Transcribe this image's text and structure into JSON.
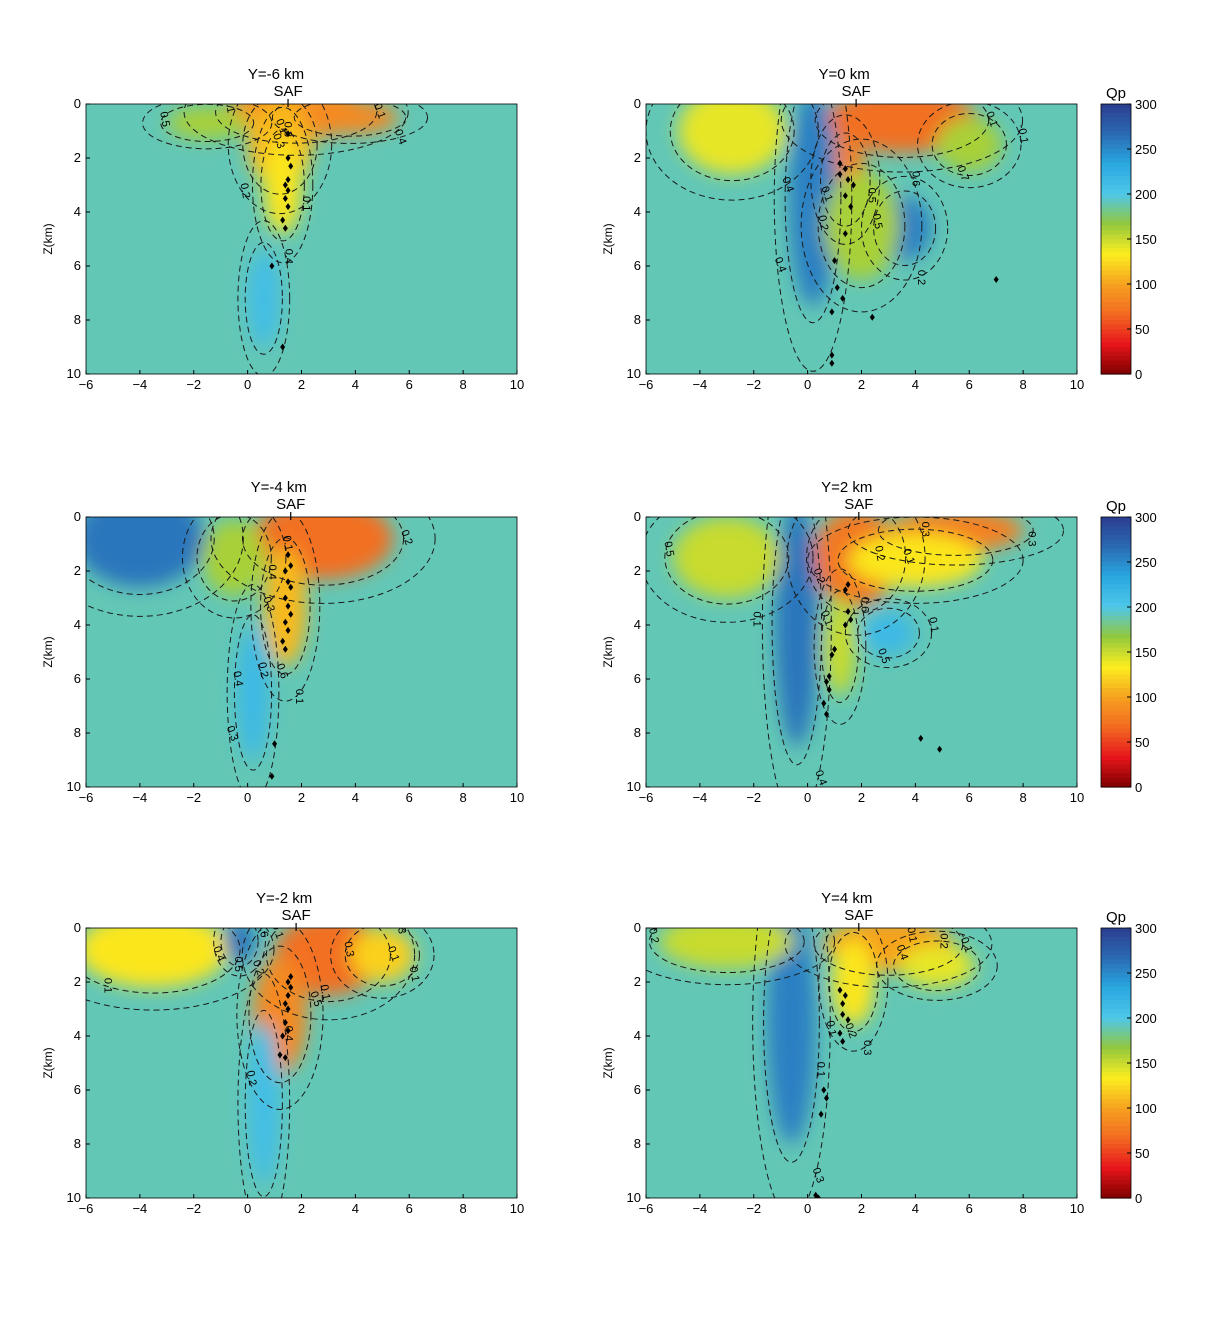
{
  "figure": {
    "colorbar_label": "Qp",
    "colorbar_ticks": [
      0,
      50,
      100,
      150,
      200,
      250,
      300
    ],
    "colorscale": [
      "#7f0000",
      "#e8161c",
      "#f26a21",
      "#f6a21f",
      "#fcee1f",
      "#93c83e",
      "#4ec7e9",
      "#29a8e0",
      "#2a6ab3",
      "#2c3d8f"
    ]
  },
  "chart_data": [
    {
      "type": "heatmap",
      "title": "Y=-6 km",
      "subtitle": "SAF",
      "ylabel": "Z(km)",
      "xlabel": "",
      "xlim": [
        -6,
        10
      ],
      "ylim": [
        0,
        10
      ],
      "xticks": [
        -6,
        -4,
        -2,
        0,
        2,
        4,
        6,
        8,
        10
      ],
      "yticks": [
        0,
        2,
        4,
        6,
        8,
        10
      ],
      "background_qp": 190,
      "saf_x": 1.5,
      "anomalies": [
        {
          "x": 1.8,
          "z": 0.3,
          "rx": 2.6,
          "rz": 1.0,
          "qp": 90
        },
        {
          "x": 1.2,
          "z": 1.5,
          "rx": 1.2,
          "rz": 1.6,
          "qp": 110
        },
        {
          "x": 1.3,
          "z": 3.0,
          "rx": 0.7,
          "rz": 1.8,
          "qp": 130
        },
        {
          "x": 3.8,
          "z": 0.5,
          "rx": 1.8,
          "rz": 0.6,
          "qp": 85
        },
        {
          "x": -1.5,
          "z": 0.7,
          "rx": 1.5,
          "rz": 0.6,
          "qp": 160
        },
        {
          "x": 0.6,
          "z": 7.2,
          "rx": 0.6,
          "rz": 1.8,
          "qp": 210
        }
      ],
      "contour_labels": [
        "0.1",
        "0.2",
        "0.3",
        "0.4",
        "0.5",
        "0.4",
        "0.3",
        "0.2",
        "0.1",
        "0.1",
        "0.1"
      ],
      "events": [
        [
          1.5,
          1.1
        ],
        [
          1.5,
          2.0
        ],
        [
          1.6,
          2.3
        ],
        [
          1.5,
          2.8
        ],
        [
          1.4,
          3.0
        ],
        [
          1.5,
          3.2
        ],
        [
          1.4,
          3.5
        ],
        [
          1.5,
          3.8
        ],
        [
          1.3,
          4.3
        ],
        [
          1.4,
          4.6
        ],
        [
          0.9,
          6.0
        ],
        [
          1.3,
          9.0
        ]
      ]
    },
    {
      "type": "heatmap",
      "title": "Y=0 km",
      "subtitle": "SAF",
      "ylabel": "Z(km)",
      "xlabel": "",
      "xlim": [
        -6,
        10
      ],
      "ylim": [
        0,
        10
      ],
      "xticks": [
        -6,
        -4,
        -2,
        0,
        2,
        4,
        6,
        8,
        10
      ],
      "yticks": [
        0,
        2,
        4,
        6,
        8,
        10
      ],
      "background_qp": 190,
      "saf_x": 1.8,
      "anomalies": [
        {
          "x": 3.5,
          "z": 0.6,
          "rx": 2.8,
          "rz": 1.2,
          "qp": 70
        },
        {
          "x": 1.4,
          "z": 2.8,
          "rx": 0.8,
          "rz": 1.5,
          "qp": 80
        },
        {
          "x": 0.2,
          "z": 3.5,
          "rx": 0.9,
          "rz": 4.0,
          "qp": 255
        },
        {
          "x": -2.8,
          "z": 1.0,
          "rx": 2.0,
          "rz": 1.6,
          "qp": 140
        },
        {
          "x": 3.6,
          "z": 4.6,
          "rx": 1.0,
          "rz": 1.2,
          "qp": 255
        },
        {
          "x": 2.0,
          "z": 4.5,
          "rx": 1.4,
          "rz": 2.0,
          "qp": 160
        },
        {
          "x": 6.0,
          "z": 1.5,
          "rx": 1.2,
          "rz": 1.0,
          "qp": 160
        }
      ],
      "contour_labels": [
        "0.1",
        "0.2",
        "0.3",
        "0.4",
        "0.5",
        "0.6",
        "0.7",
        "0.6",
        "0.5",
        "0.4",
        "0.3",
        "0.2",
        "0.1",
        "-0.1"
      ],
      "events": [
        [
          1.2,
          2.2
        ],
        [
          1.4,
          2.4
        ],
        [
          1.2,
          2.6
        ],
        [
          1.5,
          2.8
        ],
        [
          1.7,
          3.0
        ],
        [
          1.4,
          3.4
        ],
        [
          1.6,
          3.8
        ],
        [
          1.4,
          4.8
        ],
        [
          1.0,
          5.8
        ],
        [
          1.1,
          6.8
        ],
        [
          1.3,
          7.2
        ],
        [
          0.9,
          7.7
        ],
        [
          2.4,
          7.9
        ],
        [
          0.9,
          9.3
        ],
        [
          0.9,
          9.6
        ],
        [
          7.0,
          6.5
        ]
      ]
    },
    {
      "type": "heatmap",
      "title": "Y=-4 km",
      "subtitle": "SAF",
      "ylabel": "Z(km)",
      "xlabel": "",
      "xlim": [
        -6,
        10
      ],
      "ylim": [
        0,
        10
      ],
      "xticks": [
        -6,
        -4,
        -2,
        0,
        2,
        4,
        6,
        8,
        10
      ],
      "yticks": [
        0,
        2,
        4,
        6,
        8,
        10
      ],
      "background_qp": 190,
      "saf_x": 1.6,
      "anomalies": [
        {
          "x": 2.8,
          "z": 0.8,
          "rx": 2.6,
          "rz": 1.5,
          "qp": 70
        },
        {
          "x": 1.4,
          "z": 3.3,
          "rx": 0.8,
          "rz": 2.2,
          "qp": 110
        },
        {
          "x": -4.0,
          "z": 0.8,
          "rx": 2.4,
          "rz": 1.8,
          "qp": 260
        },
        {
          "x": -0.5,
          "z": 1.5,
          "rx": 1.2,
          "rz": 1.4,
          "qp": 160
        },
        {
          "x": 0.2,
          "z": 6.5,
          "rx": 0.6,
          "rz": 2.5,
          "qp": 215
        }
      ],
      "contour_labels": [
        "0.2",
        "0.2",
        "0.1",
        "0.3",
        "0.4",
        "0.5",
        "0.6",
        "0.5",
        "0.4",
        "0.3",
        "0.2",
        "0.1",
        "0.1",
        "0.1"
      ],
      "events": [
        [
          1.5,
          1.4
        ],
        [
          1.6,
          1.8
        ],
        [
          1.4,
          2.0
        ],
        [
          1.5,
          2.4
        ],
        [
          1.6,
          2.6
        ],
        [
          1.4,
          3.0
        ],
        [
          1.5,
          3.3
        ],
        [
          1.6,
          3.6
        ],
        [
          1.4,
          3.9
        ],
        [
          1.5,
          4.2
        ],
        [
          1.3,
          4.6
        ],
        [
          1.4,
          4.9
        ],
        [
          1.0,
          8.4
        ],
        [
          0.9,
          9.6
        ]
      ]
    },
    {
      "type": "heatmap",
      "title": "Y=2 km",
      "subtitle": "SAF",
      "ylabel": "Z(km)",
      "xlabel": "",
      "xlim": [
        -6,
        10
      ],
      "ylim": [
        0,
        10
      ],
      "xticks": [
        -6,
        -4,
        -2,
        0,
        2,
        4,
        6,
        8,
        10
      ],
      "yticks": [
        0,
        2,
        4,
        6,
        8,
        10
      ],
      "background_qp": 190,
      "saf_x": 1.9,
      "anomalies": [
        {
          "x": 1.8,
          "z": 1.5,
          "rx": 1.6,
          "rz": 1.8,
          "qp": 75
        },
        {
          "x": 5.5,
          "z": 0.5,
          "rx": 2.5,
          "rz": 0.8,
          "qp": 80
        },
        {
          "x": 4.0,
          "z": 1.6,
          "rx": 2.5,
          "rz": 1.0,
          "qp": 130
        },
        {
          "x": -0.4,
          "z": 4.0,
          "rx": 0.8,
          "rz": 4.5,
          "qp": 260
        },
        {
          "x": -3.0,
          "z": 1.5,
          "rx": 2.0,
          "rz": 1.5,
          "qp": 150
        },
        {
          "x": 1.2,
          "z": 4.8,
          "rx": 0.6,
          "rz": 1.8,
          "qp": 150
        },
        {
          "x": 3.0,
          "z": 4.3,
          "rx": 1.0,
          "rz": 0.8,
          "qp": 215
        }
      ],
      "contour_labels": [
        "0.1",
        "0.2",
        "0.3",
        "0.4",
        "0.5",
        "0.6",
        "0.5",
        "0.4",
        "0.3",
        "0.2",
        "0.1",
        "0.1",
        "0.1",
        "0.1"
      ],
      "events": [
        [
          1.5,
          2.5
        ],
        [
          1.4,
          2.7
        ],
        [
          1.5,
          3.5
        ],
        [
          1.6,
          3.8
        ],
        [
          1.4,
          4.0
        ],
        [
          1.0,
          4.9
        ],
        [
          0.9,
          5.1
        ],
        [
          0.8,
          5.9
        ],
        [
          0.7,
          6.1
        ],
        [
          0.8,
          6.4
        ],
        [
          0.6,
          6.9
        ],
        [
          0.7,
          7.3
        ],
        [
          4.2,
          8.2
        ],
        [
          4.9,
          8.6
        ]
      ]
    },
    {
      "type": "heatmap",
      "title": "Y=-2 km",
      "subtitle": "SAF",
      "ylabel": "Z(km)",
      "xlabel": "",
      "xlim": [
        -6,
        10
      ],
      "ylim": [
        0,
        10
      ],
      "xticks": [
        -6,
        -4,
        -2,
        0,
        2,
        4,
        6,
        8,
        10
      ],
      "yticks": [
        0,
        2,
        4,
        6,
        8,
        10
      ],
      "background_qp": 190,
      "saf_x": 1.8,
      "anomalies": [
        {
          "x": 3.0,
          "z": 1.0,
          "rx": 2.0,
          "rz": 1.5,
          "qp": 70
        },
        {
          "x": 1.2,
          "z": 3.2,
          "rx": 1.0,
          "rz": 2.2,
          "qp": 85
        },
        {
          "x": -3.5,
          "z": 0.8,
          "rx": 2.8,
          "rz": 1.4,
          "qp": 130
        },
        {
          "x": -0.3,
          "z": 0.5,
          "rx": 0.6,
          "rz": 0.8,
          "qp": 260
        },
        {
          "x": 5.0,
          "z": 1.0,
          "rx": 1.2,
          "rz": 1.0,
          "qp": 120
        },
        {
          "x": 0.6,
          "z": 6.5,
          "rx": 0.6,
          "rz": 3.0,
          "qp": 210
        }
      ],
      "contour_labels": [
        "0.1",
        "0.2",
        "0.1",
        "0.2",
        "0.3",
        "0.4",
        "0.5",
        "0.6",
        "0.5",
        "0.4",
        "0.3",
        "0.2",
        "0.1",
        "0.1",
        "0.1",
        "0.1",
        "0.1"
      ],
      "events": [
        [
          1.6,
          1.8
        ],
        [
          1.5,
          2.0
        ],
        [
          1.6,
          2.2
        ],
        [
          1.5,
          2.5
        ],
        [
          1.4,
          2.8
        ],
        [
          1.5,
          3.0
        ],
        [
          1.4,
          3.5
        ],
        [
          1.5,
          3.8
        ],
        [
          1.3,
          4.0
        ],
        [
          1.2,
          4.7
        ],
        [
          1.4,
          4.8
        ]
      ]
    },
    {
      "type": "heatmap",
      "title": "Y=4 km",
      "subtitle": "SAF",
      "ylabel": "Z(km)",
      "xlabel": "",
      "xlim": [
        -6,
        10
      ],
      "ylim": [
        0,
        10
      ],
      "xticks": [
        -6,
        -4,
        -2,
        0,
        2,
        4,
        6,
        8,
        10
      ],
      "yticks": [
        0,
        2,
        4,
        6,
        8,
        10
      ],
      "background_qp": 190,
      "saf_x": 1.9,
      "anomalies": [
        {
          "x": 3.0,
          "z": 0.6,
          "rx": 2.4,
          "rz": 1.0,
          "qp": 100
        },
        {
          "x": 1.7,
          "z": 2.0,
          "rx": 0.8,
          "rz": 1.6,
          "qp": 130
        },
        {
          "x": 4.8,
          "z": 1.4,
          "rx": 1.4,
          "rz": 0.8,
          "qp": 140
        },
        {
          "x": -0.6,
          "z": 3.5,
          "rx": 0.9,
          "rz": 4.5,
          "qp": 255
        },
        {
          "x": -3.0,
          "z": 0.5,
          "rx": 2.5,
          "rz": 1.0,
          "qp": 150
        }
      ],
      "contour_labels": [
        "-0.1",
        "0.1",
        "0.2",
        "0.3",
        "0.2",
        "0.1",
        "-0.2",
        "0.1",
        "0.1",
        "0.1",
        "0.1",
        "0.3",
        "0.4"
      ],
      "events": [
        [
          1.2,
          2.3
        ],
        [
          1.4,
          2.5
        ],
        [
          1.3,
          2.8
        ],
        [
          1.3,
          3.2
        ],
        [
          1.5,
          3.4
        ],
        [
          1.2,
          3.9
        ],
        [
          1.3,
          4.2
        ],
        [
          0.6,
          6.0
        ],
        [
          0.7,
          6.3
        ],
        [
          0.5,
          6.9
        ],
        [
          0.3,
          9.9
        ],
        [
          0.4,
          10.0
        ]
      ]
    }
  ]
}
